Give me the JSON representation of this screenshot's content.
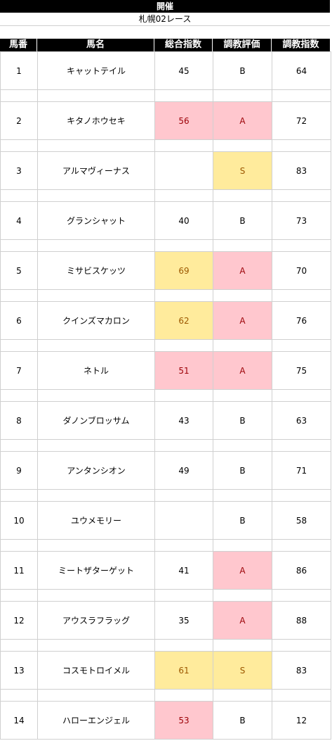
{
  "title": "開催",
  "subtitle": "札幌02レース",
  "columns": [
    "馬番",
    "馬名",
    "総合指数",
    "調教評価",
    "調教指数"
  ],
  "colors": {
    "pink_fill": "#ffc7ce",
    "pink_text": "#9c0006",
    "yellow_fill": "#ffeb9c",
    "yellow_text": "#9c5700"
  },
  "rows": [
    {
      "num": "1",
      "name": "キャットテイル",
      "sogo": "45",
      "eval": "B",
      "idx": "64",
      "sogo_hl": "",
      "eval_hl": ""
    },
    {
      "num": "2",
      "name": "キタノホウセキ",
      "sogo": "56",
      "eval": "A",
      "idx": "72",
      "sogo_hl": "pink",
      "eval_hl": "pink"
    },
    {
      "num": "3",
      "name": "アルマヴィーナス",
      "sogo": "",
      "eval": "S",
      "idx": "83",
      "sogo_hl": "",
      "eval_hl": "yellow"
    },
    {
      "num": "4",
      "name": "グランシャット",
      "sogo": "40",
      "eval": "B",
      "idx": "73",
      "sogo_hl": "",
      "eval_hl": ""
    },
    {
      "num": "5",
      "name": "ミサビスケッツ",
      "sogo": "69",
      "eval": "A",
      "idx": "70",
      "sogo_hl": "yellow",
      "eval_hl": "pink"
    },
    {
      "num": "6",
      "name": "クインズマカロン",
      "sogo": "62",
      "eval": "A",
      "idx": "76",
      "sogo_hl": "yellow",
      "eval_hl": "pink"
    },
    {
      "num": "7",
      "name": "ネトル",
      "sogo": "51",
      "eval": "A",
      "idx": "75",
      "sogo_hl": "pink",
      "eval_hl": "pink"
    },
    {
      "num": "8",
      "name": "ダノンブロッサム",
      "sogo": "43",
      "eval": "B",
      "idx": "63",
      "sogo_hl": "",
      "eval_hl": ""
    },
    {
      "num": "9",
      "name": "アンタンシオン",
      "sogo": "49",
      "eval": "B",
      "idx": "71",
      "sogo_hl": "",
      "eval_hl": ""
    },
    {
      "num": "10",
      "name": "ユウメモリー",
      "sogo": "",
      "eval": "B",
      "idx": "58",
      "sogo_hl": "",
      "eval_hl": ""
    },
    {
      "num": "11",
      "name": "ミートザターゲット",
      "sogo": "41",
      "eval": "A",
      "idx": "86",
      "sogo_hl": "",
      "eval_hl": "pink"
    },
    {
      "num": "12",
      "name": "アウスラフラッグ",
      "sogo": "35",
      "eval": "A",
      "idx": "88",
      "sogo_hl": "",
      "eval_hl": "pink"
    },
    {
      "num": "13",
      "name": "コスモトロイメル",
      "sogo": "61",
      "eval": "S",
      "idx": "83",
      "sogo_hl": "yellow",
      "eval_hl": "yellow"
    },
    {
      "num": "14",
      "name": "ハローエンジェル",
      "sogo": "53",
      "eval": "B",
      "idx": "12",
      "sogo_hl": "pink",
      "eval_hl": ""
    }
  ]
}
